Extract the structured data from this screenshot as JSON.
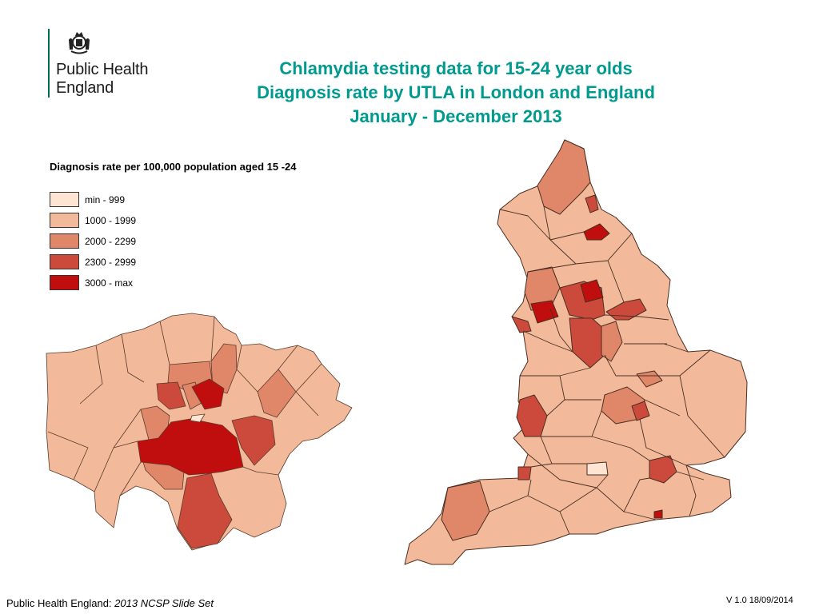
{
  "org": {
    "name_line1": "Public Health",
    "name_line2": "England"
  },
  "title": {
    "line1": "Chlamydia testing data for 15-24 year olds",
    "line2": "Diagnosis rate by UTLA in London and England",
    "line3": "January - December 2013"
  },
  "legend": {
    "title": "Diagnosis rate per 100,000 population aged 15 -24",
    "items": [
      {
        "label": "min - 999",
        "color": "#fde4d3"
      },
      {
        "label": "1000 - 1999",
        "color": "#f2b99a"
      },
      {
        "label": "2000 - 2299",
        "color": "#e0876a"
      },
      {
        "label": "2300 - 2999",
        "color": "#cc4a3b"
      },
      {
        "label": "3000 - max",
        "color": "#c00d0d"
      }
    ]
  },
  "maps": {
    "london": "Greater London",
    "england": "England"
  },
  "footer": {
    "source_prefix": "Public Health England: ",
    "source_italic": "2013 NCSP Slide Set",
    "version": "V 1.0  18/09/2014"
  }
}
